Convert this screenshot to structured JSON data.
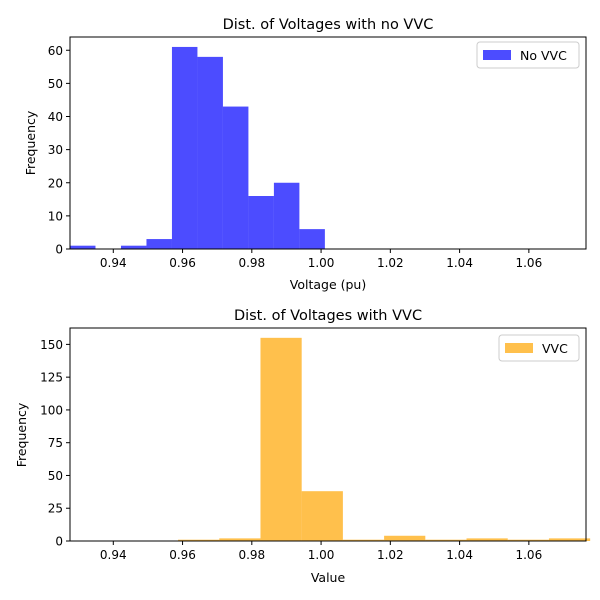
{
  "chart_data": [
    {
      "type": "bar",
      "title": "Dist. of Voltages with no VVC",
      "xlabel": "Voltage (pu)",
      "ylabel": "Frequency",
      "xlim": [
        0.9275,
        1.0765
      ],
      "ylim": [
        0,
        64
      ],
      "xticks": [
        "0.94",
        "0.96",
        "0.98",
        "1.00",
        "1.02",
        "1.04",
        "1.06"
      ],
      "xtick_values": [
        0.94,
        0.96,
        0.98,
        1.0,
        1.02,
        1.04,
        1.06
      ],
      "yticks": [
        "0",
        "10",
        "20",
        "30",
        "40",
        "50",
        "60"
      ],
      "ytick_values": [
        0,
        10,
        20,
        30,
        40,
        50,
        60
      ],
      "bin_edges": [
        0.9275,
        0.93486,
        0.94222,
        0.94958,
        0.95694,
        0.9643,
        0.97166,
        0.97902,
        0.98638,
        0.99374,
        1.0011
      ],
      "values": [
        1,
        0,
        1,
        3,
        61,
        58,
        43,
        16,
        20,
        6
      ],
      "legend": {
        "label": "No VVC",
        "position": "top-right"
      },
      "color": "#0000ff",
      "opacity": 0.7,
      "grid": false
    },
    {
      "type": "bar",
      "title": "Dist. of Voltages with VVC",
      "xlabel": "Value",
      "ylabel": "Frequency",
      "xlim": [
        0.9275,
        1.0765
      ],
      "ylim": [
        0,
        162.5
      ],
      "xticks": [
        "0.94",
        "0.96",
        "0.98",
        "1.00",
        "1.02",
        "1.04",
        "1.06"
      ],
      "xtick_values": [
        0.94,
        0.96,
        0.98,
        1.0,
        1.02,
        1.04,
        1.06
      ],
      "yticks": [
        "0",
        "25",
        "50",
        "75",
        "100",
        "125",
        "150"
      ],
      "ytick_values": [
        0,
        25,
        50,
        75,
        100,
        125,
        150
      ],
      "bin_edges": [
        0.9587,
        0.9706,
        0.9825,
        0.9944,
        1.0063,
        1.0182,
        1.0301,
        1.042,
        1.0539,
        1.0658,
        1.0777
      ],
      "values": [
        1,
        2,
        155,
        38,
        1,
        4,
        1,
        2,
        1,
        2
      ],
      "legend": {
        "label": "VVC",
        "position": "top-right"
      },
      "color": "#ffa500",
      "opacity": 0.7,
      "grid": false
    }
  ]
}
